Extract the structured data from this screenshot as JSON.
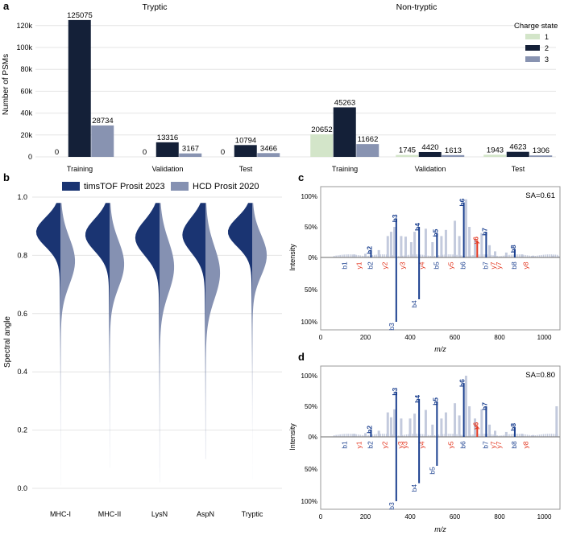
{
  "colors": {
    "charge1": "#d3e5c9",
    "charge2": "#142038",
    "charge3": "#8893b1",
    "timstof": "#1a3472",
    "hcd": "#8591b2",
    "b_ion": "#1a3f8f",
    "y_ion": "#e3361f",
    "bg_peak": "#c3cadd",
    "grid": "#e4e4e4",
    "frame": "#999999"
  },
  "panels": {
    "a": "a",
    "b": "b",
    "c": "c",
    "d": "d"
  },
  "chart_data": [
    {
      "id": "a",
      "type": "bar",
      "title": "",
      "ylabel": "Number of PSMs",
      "ylim": [
        0,
        125000
      ],
      "yticks": [
        "0",
        "20k",
        "40k",
        "60k",
        "80k",
        "100k",
        "120k"
      ],
      "ytick_values": [
        0,
        20000,
        40000,
        60000,
        80000,
        100000,
        120000
      ],
      "group_titles": [
        "Tryptic",
        "Non-tryptic"
      ],
      "categories": [
        "Training",
        "Validation",
        "Test",
        "Training",
        "Validation",
        "Test"
      ],
      "legend_title": "Charge state",
      "series": [
        {
          "name": "1",
          "values": [
            0,
            0,
            0,
            20652,
            1745,
            1943
          ],
          "labels": [
            "0",
            "0",
            "0",
            "20652",
            "1745",
            "1943"
          ]
        },
        {
          "name": "2",
          "values": [
            125075,
            13316,
            10794,
            45263,
            4420,
            4623
          ],
          "labels": [
            "125075",
            "13316",
            "10794",
            "45263",
            "4420",
            "4623"
          ]
        },
        {
          "name": "3",
          "values": [
            28734,
            3167,
            3466,
            11662,
            1613,
            1306
          ],
          "labels": [
            "28734",
            "3167",
            "3466",
            "11662",
            "1613",
            "1306"
          ]
        }
      ]
    },
    {
      "id": "b",
      "type": "violin",
      "ylabel": "Spectral angle",
      "ylim": [
        0,
        1
      ],
      "yticks": [
        "0.0",
        "0.2",
        "0.4",
        "0.6",
        "0.8",
        "1.0"
      ],
      "ytick_values": [
        0,
        0.2,
        0.4,
        0.6,
        0.8,
        1.0
      ],
      "categories": [
        "MHC-I",
        "MHC-II",
        "LysN",
        "AspN",
        "Tryptic"
      ],
      "legend": [
        "timsTOF Prosit 2023",
        "HCD Prosit 2020"
      ],
      "series": [
        {
          "name": "timsTOF Prosit 2023",
          "ranges": [
            [
              0.01,
              0.98
            ],
            [
              0.07,
              0.98
            ],
            [
              0.02,
              0.98
            ],
            [
              0.1,
              0.98
            ],
            [
              0.03,
              0.98
            ]
          ],
          "modes": [
            0.88,
            0.87,
            0.86,
            0.87,
            0.88
          ],
          "spreads": [
            0.05,
            0.055,
            0.06,
            0.06,
            0.05
          ],
          "widths": [
            1.0,
            1.0,
            1.0,
            0.95,
            1.0
          ]
        },
        {
          "name": "HCD Prosit 2020",
          "ranges": [
            [
              0.01,
              0.98
            ],
            [
              0.07,
              0.98
            ],
            [
              0.02,
              0.98
            ],
            [
              0.1,
              0.98
            ],
            [
              0.03,
              0.98
            ]
          ],
          "modes": [
            0.78,
            0.77,
            0.76,
            0.74,
            0.8
          ],
          "spreads": [
            0.08,
            0.08,
            0.09,
            0.09,
            0.07
          ],
          "widths": [
            0.6,
            0.6,
            0.6,
            0.6,
            0.6
          ]
        }
      ]
    },
    {
      "id": "c",
      "type": "mirror_spectrum",
      "xlabel": "m/z",
      "ylabel": "Intensity",
      "xlim": [
        0,
        1070
      ],
      "xticks": [
        "0",
        "200",
        "400",
        "600",
        "800",
        "1000"
      ],
      "xtick_values": [
        0,
        200,
        400,
        600,
        800,
        1000
      ],
      "yticks_top": [
        "100%",
        "50%",
        "0%"
      ],
      "yticks_bottom": [
        "50%",
        "100%"
      ],
      "annotation": "SA=0.61",
      "top_ions": [
        {
          "label": "b1",
          "mz": 110,
          "int": 0.0,
          "type": "b"
        },
        {
          "label": "b2",
          "mz": 225,
          "int": 0.12,
          "type": "b"
        },
        {
          "label": "y1",
          "mz": 175,
          "int": 0.0,
          "type": "y"
        },
        {
          "label": "y2",
          "mz": 290,
          "int": 0.0,
          "type": "y"
        },
        {
          "label": "b3",
          "mz": 338,
          "int": 0.64,
          "type": "b"
        },
        {
          "label": "y3",
          "mz": 370,
          "int": 0.0,
          "type": "y"
        },
        {
          "label": "b4",
          "mz": 440,
          "int": 0.5,
          "type": "b"
        },
        {
          "label": "y4",
          "mz": 455,
          "int": 0.0,
          "type": "y"
        },
        {
          "label": "b5",
          "mz": 520,
          "int": 0.4,
          "type": "b"
        },
        {
          "label": "y5",
          "mz": 585,
          "int": 0.0,
          "type": "y"
        },
        {
          "label": "b6",
          "mz": 640,
          "int": 0.9,
          "type": "b"
        },
        {
          "label": "y6",
          "mz": 700,
          "int": 0.28,
          "type": "y"
        },
        {
          "label": "b7",
          "mz": 740,
          "int": 0.42,
          "type": "b"
        },
        {
          "label": "y7",
          "mz": 775,
          "int": 0.0,
          "type": "y"
        },
        {
          "label": "y7",
          "mz": 800,
          "int": 0.0,
          "type": "y"
        },
        {
          "label": "b8",
          "mz": 868,
          "int": 0.14,
          "type": "b"
        },
        {
          "label": "y8",
          "mz": 920,
          "int": 0.0,
          "type": "y"
        }
      ],
      "bottom_ions": [
        {
          "label": "b2",
          "mz": 225,
          "int": 0.0,
          "type": "b"
        },
        {
          "label": "b3",
          "mz": 338,
          "int": 1.0,
          "type": "b"
        },
        {
          "label": "b4",
          "mz": 440,
          "int": 0.65,
          "type": "b"
        },
        {
          "label": "b5",
          "mz": 520,
          "int": 0.0,
          "type": "b"
        },
        {
          "label": "b6",
          "mz": 640,
          "int": 0.0,
          "type": "b"
        },
        {
          "label": "b7",
          "mz": 740,
          "int": 0.0,
          "type": "b"
        },
        {
          "label": "b8",
          "mz": 868,
          "int": 0.0,
          "type": "b"
        }
      ],
      "top_bg_peaks": [
        [
          150,
          0.05
        ],
        [
          200,
          0.06
        ],
        [
          260,
          0.12
        ],
        [
          300,
          0.35
        ],
        [
          315,
          0.42
        ],
        [
          330,
          0.5
        ],
        [
          360,
          0.35
        ],
        [
          380,
          0.34
        ],
        [
          405,
          0.25
        ],
        [
          420,
          0.42
        ],
        [
          470,
          0.47
        ],
        [
          500,
          0.25
        ],
        [
          540,
          0.35
        ],
        [
          560,
          0.45
        ],
        [
          600,
          0.6
        ],
        [
          620,
          0.35
        ],
        [
          650,
          0.95
        ],
        [
          665,
          0.5
        ],
        [
          690,
          0.3
        ],
        [
          720,
          0.4
        ],
        [
          755,
          0.2
        ],
        [
          780,
          0.1
        ],
        [
          830,
          0.08
        ],
        [
          900,
          0.05
        ],
        [
          950,
          0.03
        ],
        [
          1040,
          0.03
        ],
        [
          1062,
          0.02
        ]
      ]
    },
    {
      "id": "d",
      "type": "mirror_spectrum",
      "xlabel": "m/z",
      "ylabel": "Intensity",
      "xlim": [
        0,
        1070
      ],
      "xticks": [
        "0",
        "200",
        "400",
        "600",
        "800",
        "1000"
      ],
      "xtick_values": [
        0,
        200,
        400,
        600,
        800,
        1000
      ],
      "yticks_top": [
        "100%",
        "50%",
        "0%"
      ],
      "yticks_bottom": [
        "50%",
        "100%"
      ],
      "annotation": "SA=0.80",
      "top_ions": [
        {
          "label": "b1",
          "mz": 110,
          "int": 0.0,
          "type": "b"
        },
        {
          "label": "b2",
          "mz": 225,
          "int": 0.12,
          "type": "b"
        },
        {
          "label": "y1",
          "mz": 175,
          "int": 0.0,
          "type": "y"
        },
        {
          "label": "y2",
          "mz": 290,
          "int": 0.0,
          "type": "y"
        },
        {
          "label": "b3",
          "mz": 338,
          "int": 0.74,
          "type": "b"
        },
        {
          "label": "y3",
          "mz": 360,
          "int": 0.0,
          "type": "y"
        },
        {
          "label": "y3",
          "mz": 380,
          "int": 0.0,
          "type": "y"
        },
        {
          "label": "b4",
          "mz": 440,
          "int": 0.62,
          "type": "b"
        },
        {
          "label": "y4",
          "mz": 455,
          "int": 0.0,
          "type": "y"
        },
        {
          "label": "b5",
          "mz": 520,
          "int": 0.58,
          "type": "b"
        },
        {
          "label": "y5",
          "mz": 585,
          "int": 0.0,
          "type": "y"
        },
        {
          "label": "b6",
          "mz": 640,
          "int": 0.88,
          "type": "b"
        },
        {
          "label": "y6",
          "mz": 700,
          "int": 0.18,
          "type": "y"
        },
        {
          "label": "b7",
          "mz": 740,
          "int": 0.5,
          "type": "b"
        },
        {
          "label": "y7",
          "mz": 775,
          "int": 0.0,
          "type": "y"
        },
        {
          "label": "y7",
          "mz": 800,
          "int": 0.0,
          "type": "y"
        },
        {
          "label": "b8",
          "mz": 868,
          "int": 0.16,
          "type": "b"
        },
        {
          "label": "y8",
          "mz": 920,
          "int": 0.0,
          "type": "y"
        }
      ],
      "bottom_ions": [
        {
          "label": "b2",
          "mz": 225,
          "int": 0.0,
          "type": "b"
        },
        {
          "label": "b3",
          "mz": 338,
          "int": 1.0,
          "type": "b"
        },
        {
          "label": "b4",
          "mz": 440,
          "int": 0.72,
          "type": "b"
        },
        {
          "label": "b5",
          "mz": 520,
          "int": 0.45,
          "type": "b"
        },
        {
          "label": "b6",
          "mz": 640,
          "int": 0.0,
          "type": "b"
        },
        {
          "label": "b7",
          "mz": 740,
          "int": 0.0,
          "type": "b"
        },
        {
          "label": "b8",
          "mz": 868,
          "int": 0.0,
          "type": "b"
        }
      ],
      "top_bg_peaks": [
        [
          150,
          0.05
        ],
        [
          200,
          0.06
        ],
        [
          260,
          0.1
        ],
        [
          300,
          0.4
        ],
        [
          315,
          0.32
        ],
        [
          330,
          0.45
        ],
        [
          360,
          0.3
        ],
        [
          400,
          0.3
        ],
        [
          420,
          0.38
        ],
        [
          470,
          0.44
        ],
        [
          500,
          0.2
        ],
        [
          540,
          0.3
        ],
        [
          560,
          0.4
        ],
        [
          600,
          0.55
        ],
        [
          620,
          0.35
        ],
        [
          650,
          1.0
        ],
        [
          665,
          0.5
        ],
        [
          690,
          0.3
        ],
        [
          720,
          0.45
        ],
        [
          755,
          0.2
        ],
        [
          780,
          0.1
        ],
        [
          830,
          0.08
        ],
        [
          900,
          0.05
        ],
        [
          950,
          0.03
        ],
        [
          1055,
          0.5
        ]
      ]
    }
  ]
}
